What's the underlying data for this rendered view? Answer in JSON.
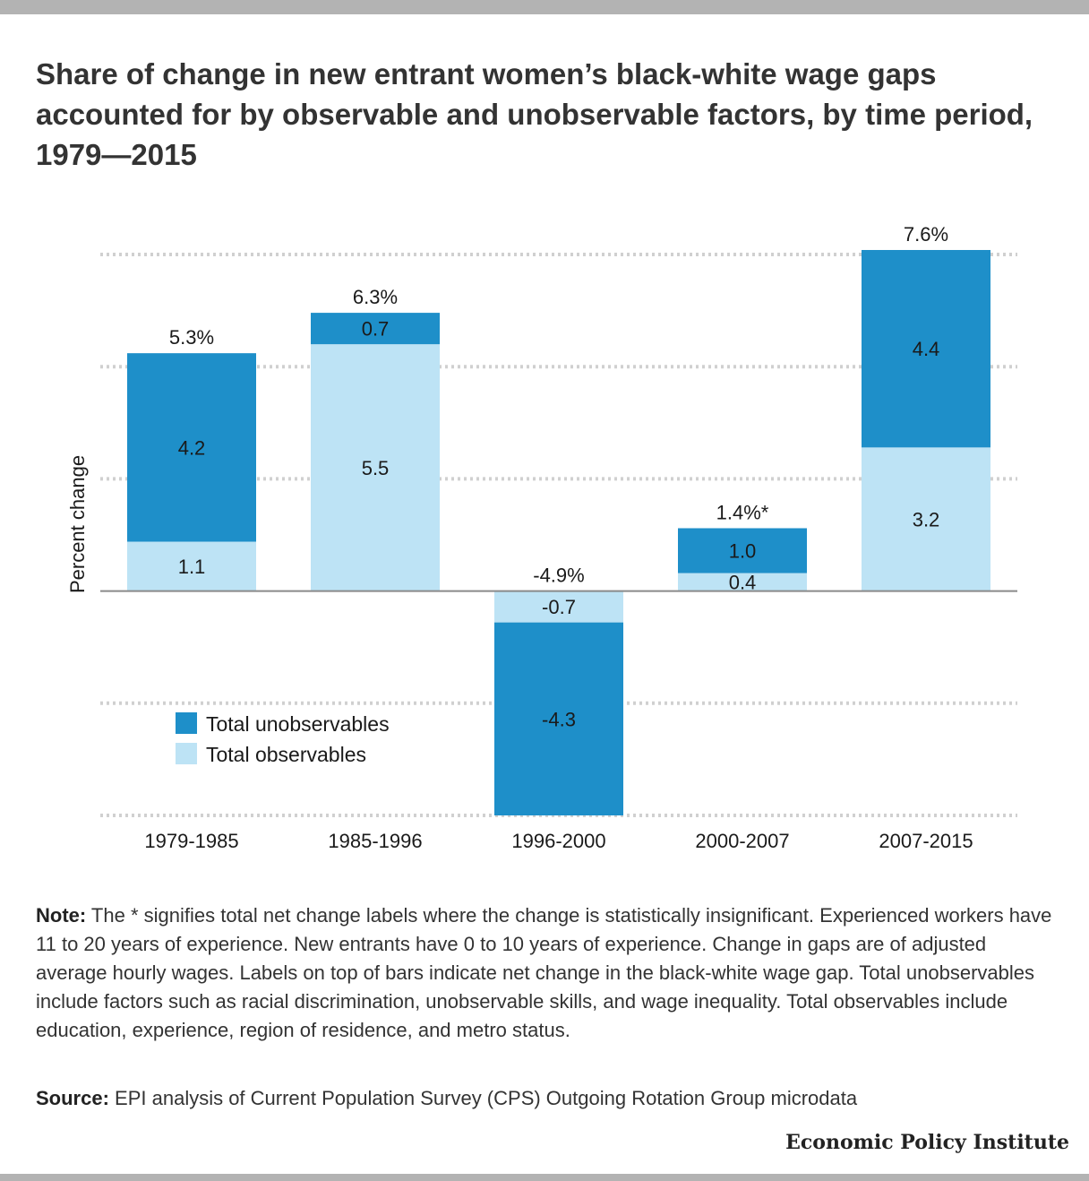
{
  "title": "Share of change in new entrant women’s black-white wage gaps accounted for by observable and unobservable factors, by time period, 1979—2015",
  "chart_data": {
    "type": "bar",
    "stacked": true,
    "categories": [
      "1979-1985",
      "1985-1996",
      "1996-2000",
      "2000-2007",
      "2007-2015"
    ],
    "series": [
      {
        "name": "Total observables",
        "values": [
          1.1,
          5.5,
          -0.7,
          0.4,
          3.2
        ],
        "labels": [
          "1.1",
          "5.5",
          "-0.7",
          "0.4",
          "3.2"
        ],
        "color": "#bde3f5"
      },
      {
        "name": "Total unobservables",
        "values": [
          4.2,
          0.7,
          -4.3,
          1.0,
          4.4
        ],
        "labels": [
          "4.2",
          "0.7",
          "-4.3",
          "1.0",
          "4.4"
        ],
        "color": "#1e8fc9"
      }
    ],
    "totals": [
      5.3,
      6.3,
      -4.9,
      1.4,
      7.6
    ],
    "total_labels": [
      "5.3%",
      "6.3%",
      "-4.9%",
      "1.4%*",
      "7.6%"
    ],
    "ylabel": "Percent change",
    "ylim": [
      -5,
      7.5
    ],
    "gridlines": [
      -5,
      -2.5,
      0,
      2.5,
      5,
      7.5
    ],
    "legend": {
      "placement": "lower-left",
      "items": [
        {
          "label": "Total unobservables",
          "color": "#1e8fc9"
        },
        {
          "label": "Total observables",
          "color": "#bde3f5"
        }
      ]
    }
  },
  "note": {
    "label": "Note:",
    "text": " The * signifies total net change labels where the change is statistically insignificant. Experienced workers have 11 to 20 years of experience. New entrants have 0 to 10 years of experience. Change in gaps are of adjusted average hourly wages. Labels on top of bars indicate net change in the black-white wage gap. Total unobservables include factors such as racial discrimination, unobservable skills, and wage inequality. Total observables include education, experience, region of residence, and metro status."
  },
  "source": {
    "label": "Source:",
    "text": " EPI analysis of Current Population Survey (CPS) Outgoing Rotation Group microdata"
  },
  "brand": "Economic Policy Institute"
}
